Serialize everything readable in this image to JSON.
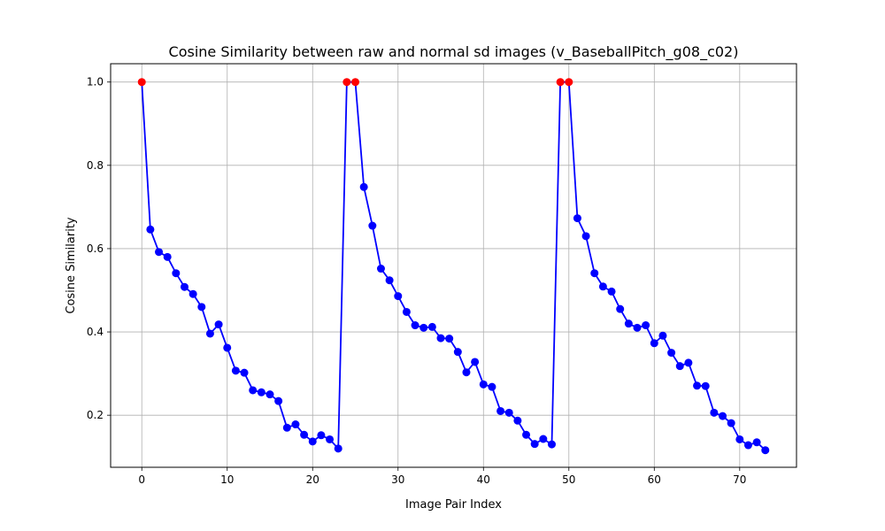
{
  "chart_data": {
    "type": "line",
    "title": "Cosine Similarity between raw and normal sd images (v_BaseballPitch_g08_c02)",
    "xlabel": "Image Pair Index",
    "ylabel": "Cosine Similarity",
    "xlim": [
      -3.65,
      76.65
    ],
    "ylim": [
      0.075,
      1.044
    ],
    "xticks": [
      0,
      10,
      20,
      30,
      40,
      50,
      60,
      70
    ],
    "yticks": [
      0.2,
      0.4,
      0.6,
      0.8,
      1.0
    ],
    "xtick_labels": [
      "0",
      "10",
      "20",
      "30",
      "40",
      "50",
      "60",
      "70"
    ],
    "ytick_labels": [
      "0.2",
      "0.4",
      "0.6",
      "0.8",
      "1.0"
    ],
    "grid": true,
    "line_color": "#0000ff",
    "marker_color": "#0000ff",
    "highlight_color": "#ff0000",
    "highlight_indices": [
      0,
      24,
      25,
      49,
      50
    ],
    "x": [
      0,
      1,
      2,
      3,
      4,
      5,
      6,
      7,
      8,
      9,
      10,
      11,
      12,
      13,
      14,
      15,
      16,
      17,
      18,
      19,
      20,
      21,
      22,
      23,
      24,
      25,
      26,
      27,
      28,
      29,
      30,
      31,
      32,
      33,
      34,
      35,
      36,
      37,
      38,
      39,
      40,
      41,
      42,
      43,
      44,
      45,
      46,
      47,
      48,
      49,
      50,
      51,
      52,
      53,
      54,
      55,
      56,
      57,
      58,
      59,
      60,
      61,
      62,
      63,
      64,
      65,
      66,
      67,
      68,
      69,
      70,
      71,
      72,
      73
    ],
    "y": [
      1.0,
      0.646,
      0.592,
      0.58,
      0.541,
      0.508,
      0.491,
      0.46,
      0.396,
      0.418,
      0.362,
      0.307,
      0.302,
      0.26,
      0.255,
      0.25,
      0.234,
      0.17,
      0.178,
      0.153,
      0.137,
      0.152,
      0.142,
      0.12,
      1.0,
      1.0,
      0.748,
      0.655,
      0.552,
      0.524,
      0.486,
      0.448,
      0.416,
      0.41,
      0.412,
      0.385,
      0.384,
      0.352,
      0.303,
      0.328,
      0.274,
      0.268,
      0.21,
      0.206,
      0.187,
      0.153,
      0.131,
      0.143,
      0.13,
      1.0,
      1.0,
      0.673,
      0.63,
      0.541,
      0.509,
      0.497,
      0.455,
      0.42,
      0.41,
      0.416,
      0.373,
      0.391,
      0.35,
      0.318,
      0.326,
      0.271,
      0.27,
      0.206,
      0.198,
      0.181,
      0.142,
      0.128,
      0.135,
      0.116
    ]
  }
}
